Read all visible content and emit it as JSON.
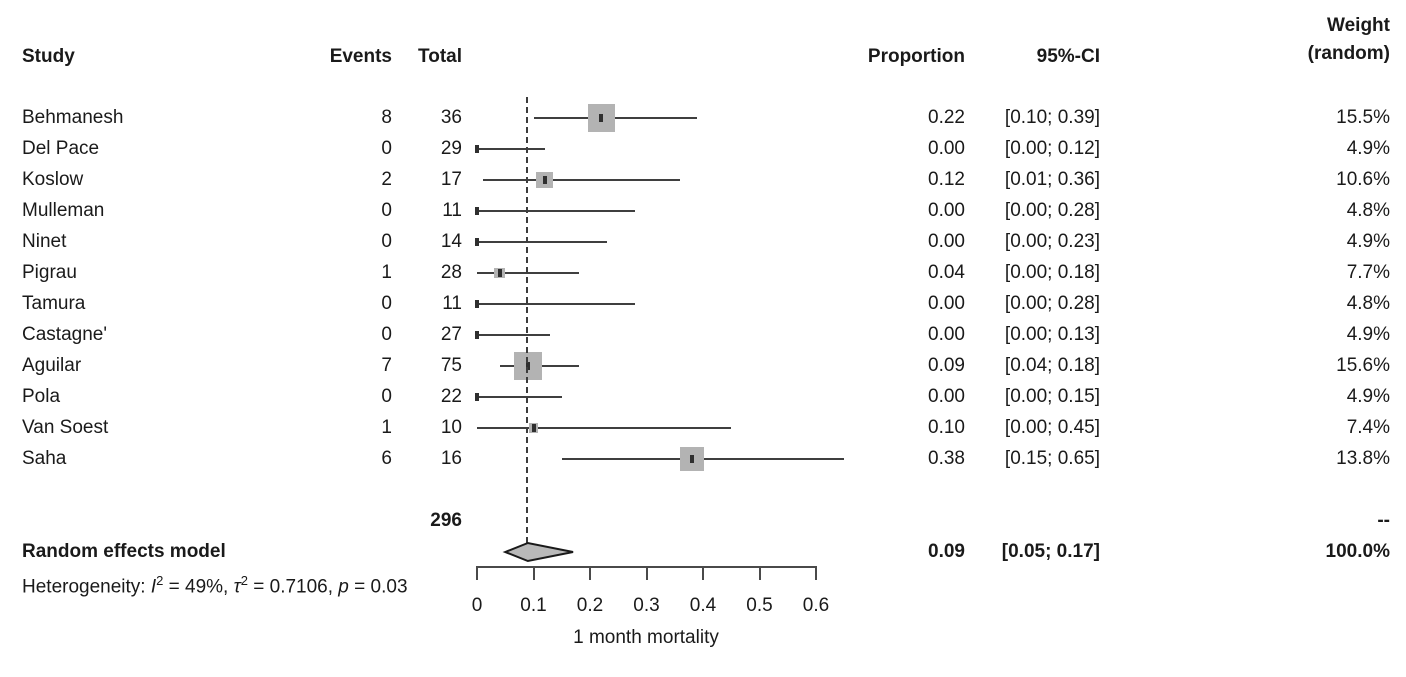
{
  "header": {
    "study": "Study",
    "events": "Events",
    "total": "Total",
    "proportion": "Proportion",
    "ci": "95%-CI",
    "weight_line1": "Weight",
    "weight_line2": "(random)"
  },
  "chart_data": {
    "type": "forest",
    "xlabel": "1 month mortality",
    "axis": {
      "min": 0,
      "max": 0.6,
      "ticks": [
        0,
        0.1,
        0.2,
        0.3,
        0.4,
        0.5,
        0.6
      ],
      "tick_labels": [
        "0",
        "0.1",
        "0.2",
        "0.3",
        "0.4",
        "0.5",
        "0.6"
      ]
    },
    "reference_line": 0.09,
    "colors": {
      "square": "#b3b3b3",
      "point_marker": "#2f2f2f",
      "ci_line": "#3f3f3f",
      "diamond_fill": "#b9b9b9",
      "diamond_stroke": "#1a1a1a",
      "axis": "#4a4a4a"
    },
    "studies": [
      {
        "name": "Behmanesh",
        "events": 8,
        "total": 36,
        "estimate": 0.22,
        "ci_lo": 0.1,
        "ci_hi": 0.39,
        "proportion_text": "0.22",
        "ci_text": "[0.10; 0.39]",
        "weight": 15.5,
        "weight_text": "15.5%"
      },
      {
        "name": "Del Pace",
        "events": 0,
        "total": 29,
        "estimate": 0.0,
        "ci_lo": 0.0,
        "ci_hi": 0.12,
        "proportion_text": "0.00",
        "ci_text": "[0.00; 0.12]",
        "weight": 4.9,
        "weight_text": "4.9%"
      },
      {
        "name": "Koslow",
        "events": 2,
        "total": 17,
        "estimate": 0.12,
        "ci_lo": 0.01,
        "ci_hi": 0.36,
        "proportion_text": "0.12",
        "ci_text": "[0.01; 0.36]",
        "weight": 10.6,
        "weight_text": "10.6%"
      },
      {
        "name": "Mulleman",
        "events": 0,
        "total": 11,
        "estimate": 0.0,
        "ci_lo": 0.0,
        "ci_hi": 0.28,
        "proportion_text": "0.00",
        "ci_text": "[0.00; 0.28]",
        "weight": 4.8,
        "weight_text": "4.8%"
      },
      {
        "name": "Ninet",
        "events": 0,
        "total": 14,
        "estimate": 0.0,
        "ci_lo": 0.0,
        "ci_hi": 0.23,
        "proportion_text": "0.00",
        "ci_text": "[0.00; 0.23]",
        "weight": 4.9,
        "weight_text": "4.9%"
      },
      {
        "name": "Pigrau",
        "events": 1,
        "total": 28,
        "estimate": 0.04,
        "ci_lo": 0.0,
        "ci_hi": 0.18,
        "proportion_text": "0.04",
        "ci_text": "[0.00; 0.18]",
        "weight": 7.7,
        "weight_text": "7.7%"
      },
      {
        "name": "Tamura",
        "events": 0,
        "total": 11,
        "estimate": 0.0,
        "ci_lo": 0.0,
        "ci_hi": 0.28,
        "proportion_text": "0.00",
        "ci_text": "[0.00; 0.28]",
        "weight": 4.8,
        "weight_text": "4.8%"
      },
      {
        "name": "Castagne'",
        "events": 0,
        "total": 27,
        "estimate": 0.0,
        "ci_lo": 0.0,
        "ci_hi": 0.13,
        "proportion_text": "0.00",
        "ci_text": "[0.00; 0.13]",
        "weight": 4.9,
        "weight_text": "4.9%"
      },
      {
        "name": "Aguilar",
        "events": 7,
        "total": 75,
        "estimate": 0.09,
        "ci_lo": 0.04,
        "ci_hi": 0.18,
        "proportion_text": "0.09",
        "ci_text": "[0.04; 0.18]",
        "weight": 15.6,
        "weight_text": "15.6%"
      },
      {
        "name": "Pola",
        "events": 0,
        "total": 22,
        "estimate": 0.0,
        "ci_lo": 0.0,
        "ci_hi": 0.15,
        "proportion_text": "0.00",
        "ci_text": "[0.00; 0.15]",
        "weight": 4.9,
        "weight_text": "4.9%"
      },
      {
        "name": "Van Soest",
        "events": 1,
        "total": 10,
        "estimate": 0.1,
        "ci_lo": 0.0,
        "ci_hi": 0.45,
        "proportion_text": "0.10",
        "ci_text": "[0.00; 0.45]",
        "weight": 7.4,
        "weight_text": "7.4%"
      },
      {
        "name": "Saha",
        "events": 6,
        "total": 16,
        "estimate": 0.38,
        "ci_lo": 0.15,
        "ci_hi": 0.65,
        "proportion_text": "0.38",
        "ci_text": "[0.15; 0.65]",
        "weight": 13.8,
        "weight_text": "13.8%"
      }
    ],
    "total_row": {
      "total": "296",
      "weight_text": "--"
    },
    "summary": {
      "label": "Random effects model",
      "estimate": 0.09,
      "ci_lo": 0.05,
      "ci_hi": 0.17,
      "proportion_text": "0.09",
      "ci_text": "[0.05; 0.17]",
      "weight_text": "100.0%"
    },
    "heterogeneity": {
      "prefix": "Heterogeneity: ",
      "i_sym": "I",
      "i_sup": "2",
      "i_val": " = 49%, ",
      "tau_sym": "τ",
      "tau_sup": "2",
      "tau_val": " = 0.7106, ",
      "p_sym": "p",
      "p_val": " = 0.03"
    }
  }
}
